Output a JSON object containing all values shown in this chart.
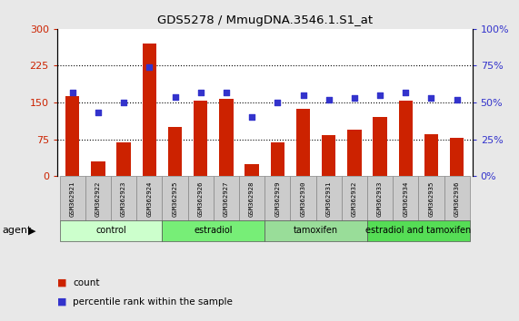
{
  "title": "GDS5278 / MmugDNA.3546.1.S1_at",
  "samples": [
    "GSM362921",
    "GSM362922",
    "GSM362923",
    "GSM362924",
    "GSM362925",
    "GSM362926",
    "GSM362927",
    "GSM362928",
    "GSM362929",
    "GSM362930",
    "GSM362931",
    "GSM362932",
    "GSM362933",
    "GSM362934",
    "GSM362935",
    "GSM362936"
  ],
  "counts": [
    163,
    30,
    68,
    270,
    100,
    153,
    158,
    25,
    68,
    138,
    83,
    95,
    120,
    153,
    85,
    78
  ],
  "percentiles": [
    57,
    43,
    50,
    74,
    54,
    57,
    57,
    40,
    50,
    55,
    52,
    53,
    55,
    57,
    53,
    52
  ],
  "bar_color": "#cc2200",
  "dot_color": "#3333cc",
  "ylim_left": [
    0,
    300
  ],
  "ylim_right": [
    0,
    100
  ],
  "yticks_left": [
    0,
    75,
    150,
    225,
    300
  ],
  "yticks_right": [
    0,
    25,
    50,
    75,
    100
  ],
  "groups": [
    {
      "label": "control",
      "start": 0,
      "end": 4,
      "color": "#ccffcc"
    },
    {
      "label": "estradiol",
      "start": 4,
      "end": 8,
      "color": "#77ee77"
    },
    {
      "label": "tamoxifen",
      "start": 8,
      "end": 12,
      "color": "#99dd99"
    },
    {
      "label": "estradiol and tamoxifen",
      "start": 12,
      "end": 16,
      "color": "#55dd55"
    }
  ],
  "agent_label": "agent",
  "legend_count_label": "count",
  "legend_percentile_label": "percentile rank within the sample",
  "bg_color": "#e8e8e8",
  "plot_bg_color": "#ffffff",
  "sample_cell_color": "#cccccc",
  "sample_cell_border": "#888888"
}
